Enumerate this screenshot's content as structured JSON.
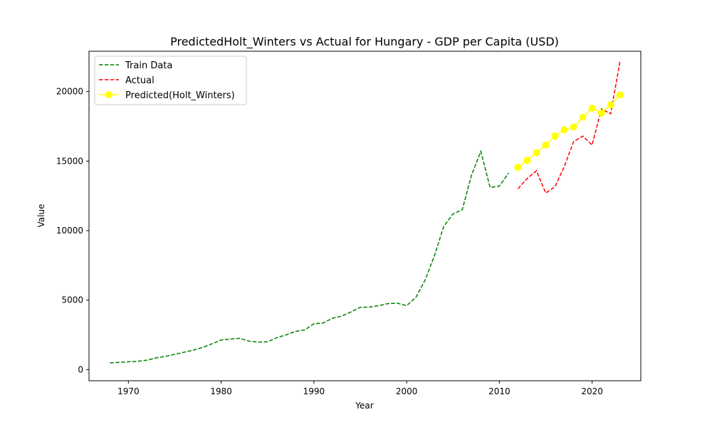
{
  "chart_data": {
    "type": "line",
    "title": "PredictedHolt_Winters vs Actual for Hungary - GDP per Capita (USD)",
    "xlabel": "Year",
    "ylabel": "Value",
    "xlim": [
      1965.75,
      2025.25
    ],
    "ylim": [
      -800,
      22900
    ],
    "xticks": [
      1970,
      1980,
      1990,
      2000,
      2010,
      2020
    ],
    "yticks": [
      0,
      5000,
      10000,
      15000,
      20000
    ],
    "legend_position": "top-left",
    "grid": false,
    "series": [
      {
        "name": "Train Data",
        "color": "#008000",
        "style": "dashed",
        "x": [
          1968,
          1969,
          1970,
          1971,
          1972,
          1973,
          1974,
          1975,
          1976,
          1977,
          1978,
          1979,
          1980,
          1981,
          1982,
          1983,
          1984,
          1985,
          1986,
          1987,
          1988,
          1989,
          1990,
          1991,
          1992,
          1993,
          1994,
          1995,
          1996,
          1997,
          1998,
          1999,
          2000,
          2001,
          2002,
          2003,
          2004,
          2005,
          2006,
          2007,
          2008,
          2009,
          2010,
          2011
        ],
        "values": [
          480,
          520,
          560,
          600,
          680,
          850,
          950,
          1100,
          1250,
          1400,
          1600,
          1850,
          2130,
          2200,
          2250,
          2050,
          1980,
          2000,
          2300,
          2500,
          2750,
          2850,
          3300,
          3350,
          3700,
          3850,
          4150,
          4480,
          4500,
          4600,
          4750,
          4780,
          4600,
          5200,
          6450,
          8200,
          10300,
          11200,
          11500,
          14000,
          15700,
          13100,
          13200,
          14150
        ]
      },
      {
        "name": "Actual",
        "color": "#ff0000",
        "style": "dashed",
        "x": [
          2012,
          2013,
          2014,
          2015,
          2016,
          2017,
          2018,
          2019,
          2020,
          2021,
          2022,
          2023
        ],
        "values": [
          13000,
          13750,
          14300,
          12700,
          13150,
          14600,
          16400,
          16800,
          16150,
          18750,
          18400,
          22150
        ]
      },
      {
        "name": "Predicted(Holt_Winters)",
        "color": "#ffff00",
        "style": "solid-markers",
        "x": [
          2012,
          2013,
          2014,
          2015,
          2016,
          2017,
          2018,
          2019,
          2020,
          2021,
          2022,
          2023
        ],
        "values": [
          14550,
          15050,
          15600,
          16150,
          16800,
          17250,
          17450,
          18150,
          18800,
          18450,
          19050,
          19750
        ]
      }
    ]
  }
}
